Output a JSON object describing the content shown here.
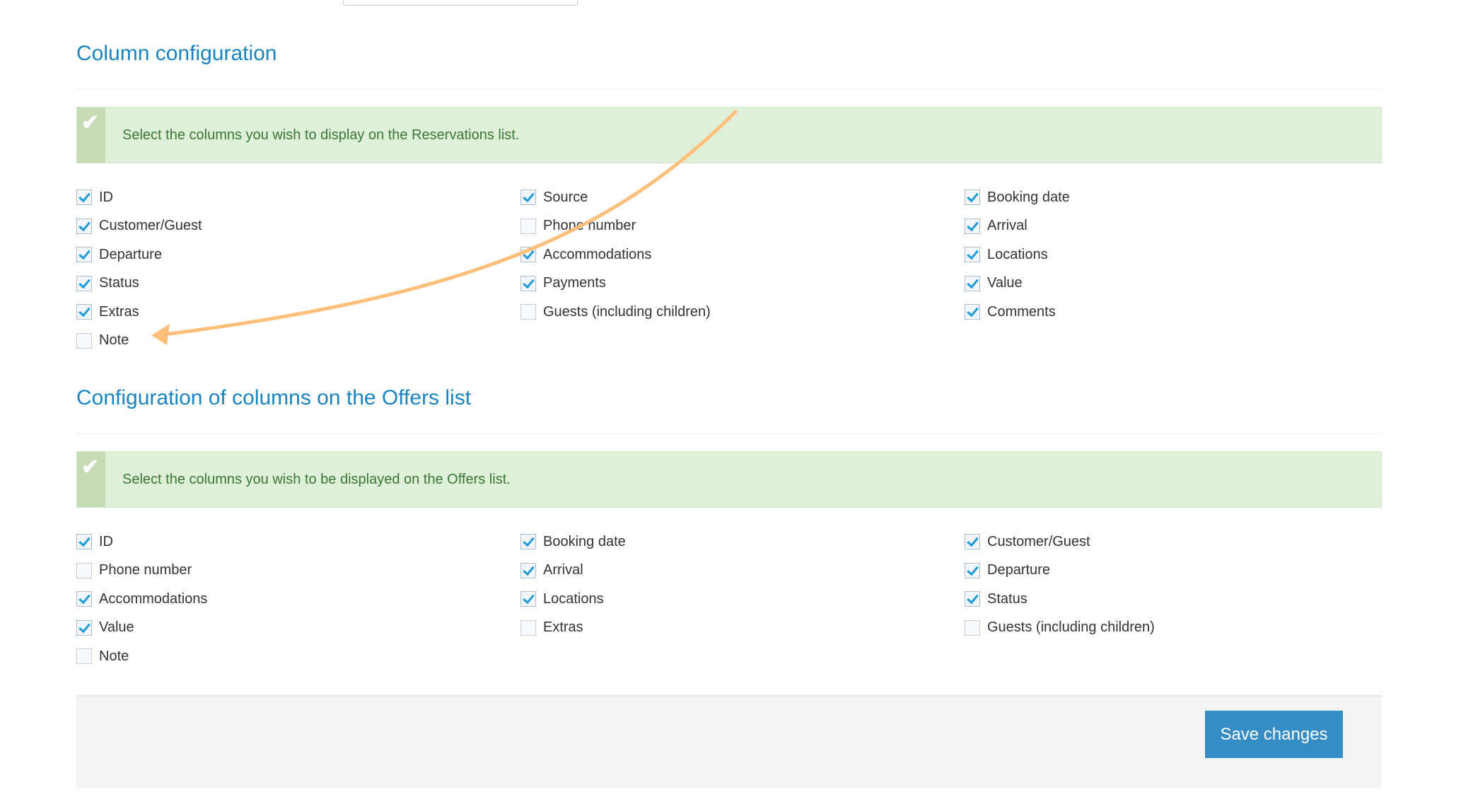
{
  "reservations": {
    "title": "Column configuration",
    "info": "Select the columns you wish to display on the Reservations list.",
    "columns": [
      {
        "label": "ID",
        "checked": true
      },
      {
        "label": "Source",
        "checked": true
      },
      {
        "label": "Booking date",
        "checked": true
      },
      {
        "label": "Customer/Guest",
        "checked": true
      },
      {
        "label": "Phone number",
        "checked": false
      },
      {
        "label": "Arrival",
        "checked": true
      },
      {
        "label": "Departure",
        "checked": true
      },
      {
        "label": "Accommodations",
        "checked": true
      },
      {
        "label": "Locations",
        "checked": true
      },
      {
        "label": "Status",
        "checked": true
      },
      {
        "label": "Payments",
        "checked": true
      },
      {
        "label": "Value",
        "checked": true
      },
      {
        "label": "Extras",
        "checked": true
      },
      {
        "label": "Guests (including children)",
        "checked": false
      },
      {
        "label": "Comments",
        "checked": true
      },
      {
        "label": "Note",
        "checked": false
      }
    ]
  },
  "offers": {
    "title": "Configuration of columns on the Offers list",
    "info": "Select the columns you wish to be displayed on the Offers list.",
    "columns": [
      {
        "label": "ID",
        "checked": true
      },
      {
        "label": "Booking date",
        "checked": true
      },
      {
        "label": "Customer/Guest",
        "checked": true
      },
      {
        "label": "Phone number",
        "checked": false
      },
      {
        "label": "Arrival",
        "checked": true
      },
      {
        "label": "Departure",
        "checked": true
      },
      {
        "label": "Accommodations",
        "checked": true
      },
      {
        "label": "Locations",
        "checked": true
      },
      {
        "label": "Status",
        "checked": true
      },
      {
        "label": "Value",
        "checked": true
      },
      {
        "label": "Extras",
        "checked": false
      },
      {
        "label": "Guests (including children)",
        "checked": false
      },
      {
        "label": "Note",
        "checked": false
      }
    ]
  },
  "footer": {
    "save_label": "Save changes"
  },
  "colors": {
    "accent": "#368dc6",
    "heading": "#1a84c0",
    "alert_bg": "#dff0d8",
    "annotation_arrow": "#fdbf7a"
  }
}
